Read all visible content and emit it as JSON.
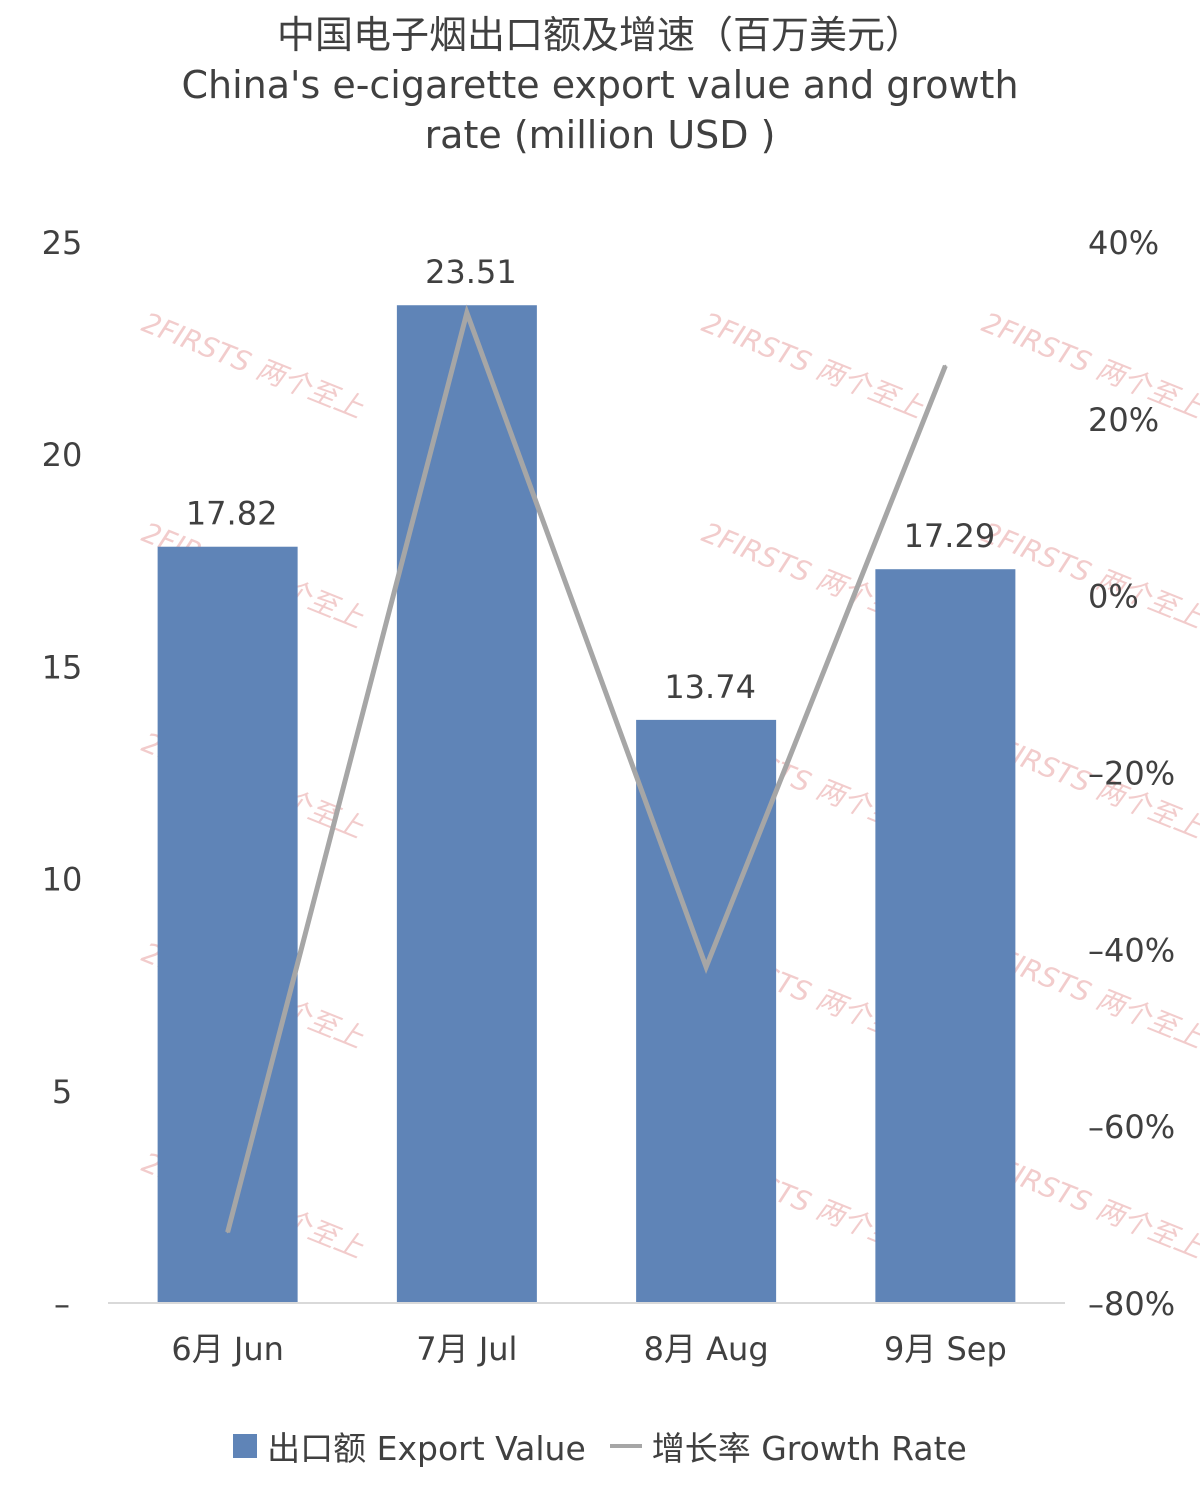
{
  "title": {
    "cn": "中国电子烟出口额及增速（百万美元）",
    "en_line1": "China's e-cigarette export value and growth",
    "en_line2": "rate (million USD )"
  },
  "legend": {
    "bar_label": "出口额 Export Value",
    "line_label": "增长率 Growth Rate"
  },
  "watermark": "2FIRSTS 两个至上",
  "colors": {
    "bar": "#5f84b7",
    "line": "#a6a6a6",
    "text": "#404040",
    "watermark": "#e8a3a3",
    "axis": "#d9d9d9"
  },
  "chart_data": {
    "type": "bar",
    "categories": [
      "6月 Jun",
      "7月 Jul",
      "8月 Aug",
      "9月 Sep"
    ],
    "series": [
      {
        "name": "出口额 Export Value",
        "type": "bar",
        "axis": "left",
        "values": [
          17.82,
          23.51,
          13.74,
          17.29
        ],
        "data_labels": [
          "17.82",
          "23.51",
          "13.74",
          "17.29"
        ]
      },
      {
        "name": "增长率 Growth Rate",
        "type": "line",
        "axis": "right",
        "values": [
          -72,
          32,
          -42,
          26
        ]
      }
    ],
    "y_left": {
      "ylim": [
        0,
        25
      ],
      "ticks": [
        0,
        5,
        10,
        15,
        20,
        25
      ],
      "tick_labels": [
        "–",
        "5",
        "10",
        "15",
        "20",
        "25"
      ]
    },
    "y_right": {
      "ylim": [
        -80,
        40
      ],
      "ticks": [
        -80,
        -60,
        -40,
        -20,
        0,
        20,
        40
      ],
      "tick_labels": [
        "–80%",
        "–60%",
        "–40%",
        "–20%",
        "0%",
        "20%",
        "40%"
      ]
    },
    "grid": false,
    "legend_position": "bottom"
  }
}
